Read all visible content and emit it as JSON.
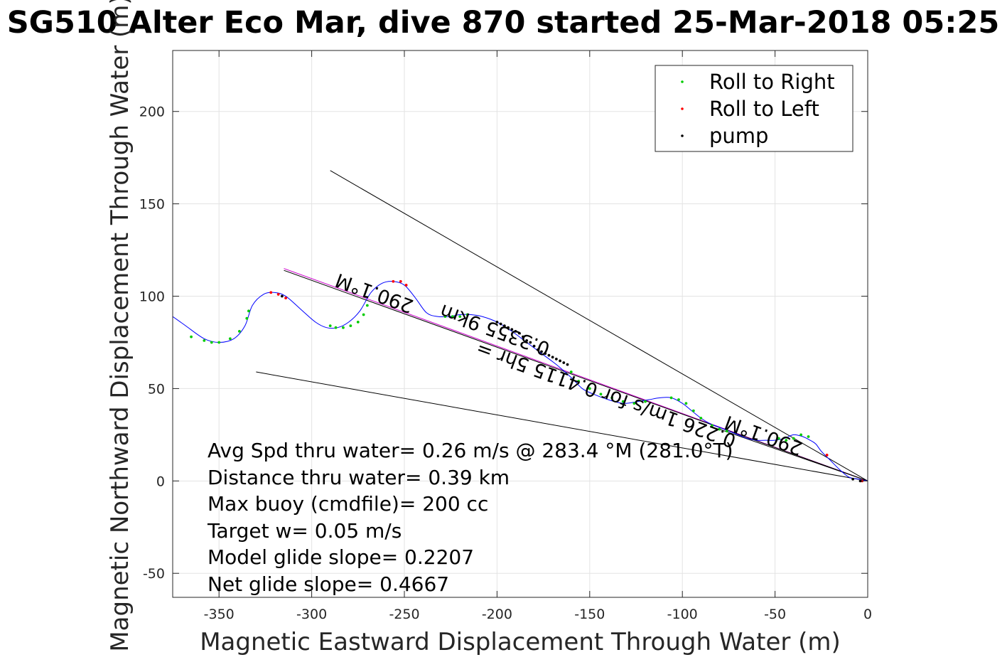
{
  "chart_data": {
    "type": "line",
    "title": "SG510 Alter Eco Mar, dive 870 started 25-Mar-2018 05:25",
    "xlabel": "Magnetic Eastward Displacement Through Water (m)",
    "ylabel": "Magnetic Northward Displacement Through Water (m)",
    "xlim": [
      -375,
      0
    ],
    "ylim": [
      -63,
      233
    ],
    "grid": true,
    "xticks": [
      -350,
      -300,
      -250,
      -200,
      -150,
      -100,
      -50,
      0
    ],
    "yticks": [
      -50,
      0,
      50,
      100,
      150,
      200
    ],
    "xtick_labels": [
      "-350",
      "-300",
      "-250",
      "-200",
      "-150",
      "-100",
      "-50",
      "0"
    ],
    "ytick_labels": [
      "-50",
      "0",
      "50",
      "100",
      "150",
      "200"
    ],
    "legend": {
      "placement": "top-right",
      "entries": [
        {
          "label": "Roll to Right",
          "color": "#00cc00"
        },
        {
          "label": "Roll to Left",
          "color": "#ff0000"
        },
        {
          "label": "pump",
          "color": "#000000"
        }
      ]
    },
    "track": {
      "name": "dive track",
      "color": "#0000ff",
      "x": [
        -375,
        -368,
        -358,
        -350,
        -342,
        -336,
        -332,
        -326,
        -320,
        -314,
        -306,
        -298,
        -292,
        -286,
        -280,
        -274,
        -268,
        -262,
        -256,
        -250,
        -244,
        -238,
        -232,
        -226,
        -220,
        -214,
        -208,
        -200,
        -192,
        -184,
        -176,
        -168,
        -160,
        -154,
        -148,
        -140,
        -132,
        -124,
        -118,
        -112,
        -106,
        -100,
        -95,
        -90,
        -85,
        -80,
        -75,
        -70,
        -65,
        -60,
        -55,
        -50,
        -45,
        -40,
        -35,
        -31,
        -28,
        -25,
        -20,
        -15,
        -10,
        -5,
        0
      ],
      "y": [
        89,
        84,
        77,
        75,
        77,
        84,
        95,
        101,
        102,
        100,
        93,
        86,
        83,
        83,
        86,
        92,
        102,
        107,
        108,
        106,
        99,
        91,
        89,
        89,
        90,
        90,
        89,
        86,
        81,
        75,
        69,
        63,
        56,
        50,
        47,
        44,
        42,
        43,
        44,
        45,
        45,
        42,
        38,
        34,
        31,
        29,
        27,
        25,
        23,
        22,
        22,
        22,
        23,
        25,
        24,
        22,
        20,
        16,
        11,
        6,
        2,
        1,
        0
      ]
    },
    "roll_right_points": {
      "x": [
        -365,
        -358,
        -354,
        -350,
        -344,
        -339,
        -335,
        -334,
        -290,
        -287,
        -283,
        -279,
        -275,
        -272,
        -270,
        -228,
        -224,
        -220,
        -216,
        -160,
        -156,
        -150,
        -144,
        -138,
        -132,
        -126,
        -120,
        -106,
        -102,
        -98,
        -94,
        -90,
        -84,
        -80,
        -76,
        -48,
        -44,
        -40,
        -36,
        -32
      ],
      "y": [
        78,
        76,
        75,
        75,
        77,
        81,
        88,
        92,
        84,
        83,
        83,
        84,
        86,
        90,
        95,
        89,
        89,
        89,
        90,
        59,
        54,
        50,
        47,
        45,
        43,
        42,
        43,
        45,
        44,
        42,
        38,
        34,
        30,
        28,
        27,
        23,
        22,
        23,
        25,
        24
      ]
    },
    "roll_left_points": {
      "x": [
        -322,
        -318,
        -314,
        -256,
        -252,
        -249,
        -22,
        -3
      ],
      "y": [
        102,
        101,
        99,
        108,
        108,
        106,
        14,
        0
      ]
    },
    "pump_points": {
      "x": [
        -316,
        -200,
        -198,
        -196,
        -194,
        -192,
        -190,
        -188,
        -186,
        -184,
        -182,
        -180,
        -178,
        -176,
        -174,
        -172,
        -170,
        -168,
        -166,
        -164,
        -162,
        -8,
        -4
      ],
      "y": [
        100,
        86,
        85,
        84,
        83,
        82,
        81,
        80,
        78,
        76,
        75,
        73,
        71,
        70,
        69,
        68,
        67,
        66,
        65,
        64,
        63,
        1,
        0
      ]
    },
    "reference_lines": [
      {
        "name": "heading-line",
        "color": "#cc00cc",
        "x": [
          -315,
          0
        ],
        "y": [
          115,
          0
        ]
      },
      {
        "name": "heading-line-inner",
        "color": "#000000",
        "x": [
          -315,
          0
        ],
        "y": [
          114,
          0
        ]
      },
      {
        "name": "upper-bound-line",
        "color": "#000000",
        "x": [
          -290,
          0
        ],
        "y": [
          168,
          0
        ]
      },
      {
        "name": "lower-bound-line",
        "color": "#000000",
        "x": [
          -330,
          0
        ],
        "y": [
          59,
          0
        ]
      },
      {
        "name": "tail-line",
        "color": "#000000",
        "x": [
          -80,
          0
        ],
        "y": [
          28,
          0
        ]
      }
    ],
    "annotations": [
      {
        "name": "heading-label-left",
        "text": "290.1°M",
        "x": -265,
        "y": 105,
        "angle": 200
      },
      {
        "name": "distance-label",
        "text": "0.3355 9km",
        "x": -200,
        "y": 85,
        "angle": 200
      },
      {
        "name": "speed-label",
        "text": "0.226 1m/s for 0.4115 5hr =",
        "x": -140,
        "y": 50,
        "angle": 200
      },
      {
        "name": "heading-label-right",
        "text": "290.1°M",
        "x": -55,
        "y": 28,
        "angle": 200
      }
    ],
    "stats": [
      "Avg Spd thru water=  0.26 m/s @ 283.4  °M (281.0°T)",
      "Distance thru water=  0.39 km",
      "Max buoy (cmdfile)= 200 cc",
      "Target w= 0.05 m/s",
      "Model glide slope= 0.2207",
      "Net glide slope= 0.4667"
    ]
  }
}
